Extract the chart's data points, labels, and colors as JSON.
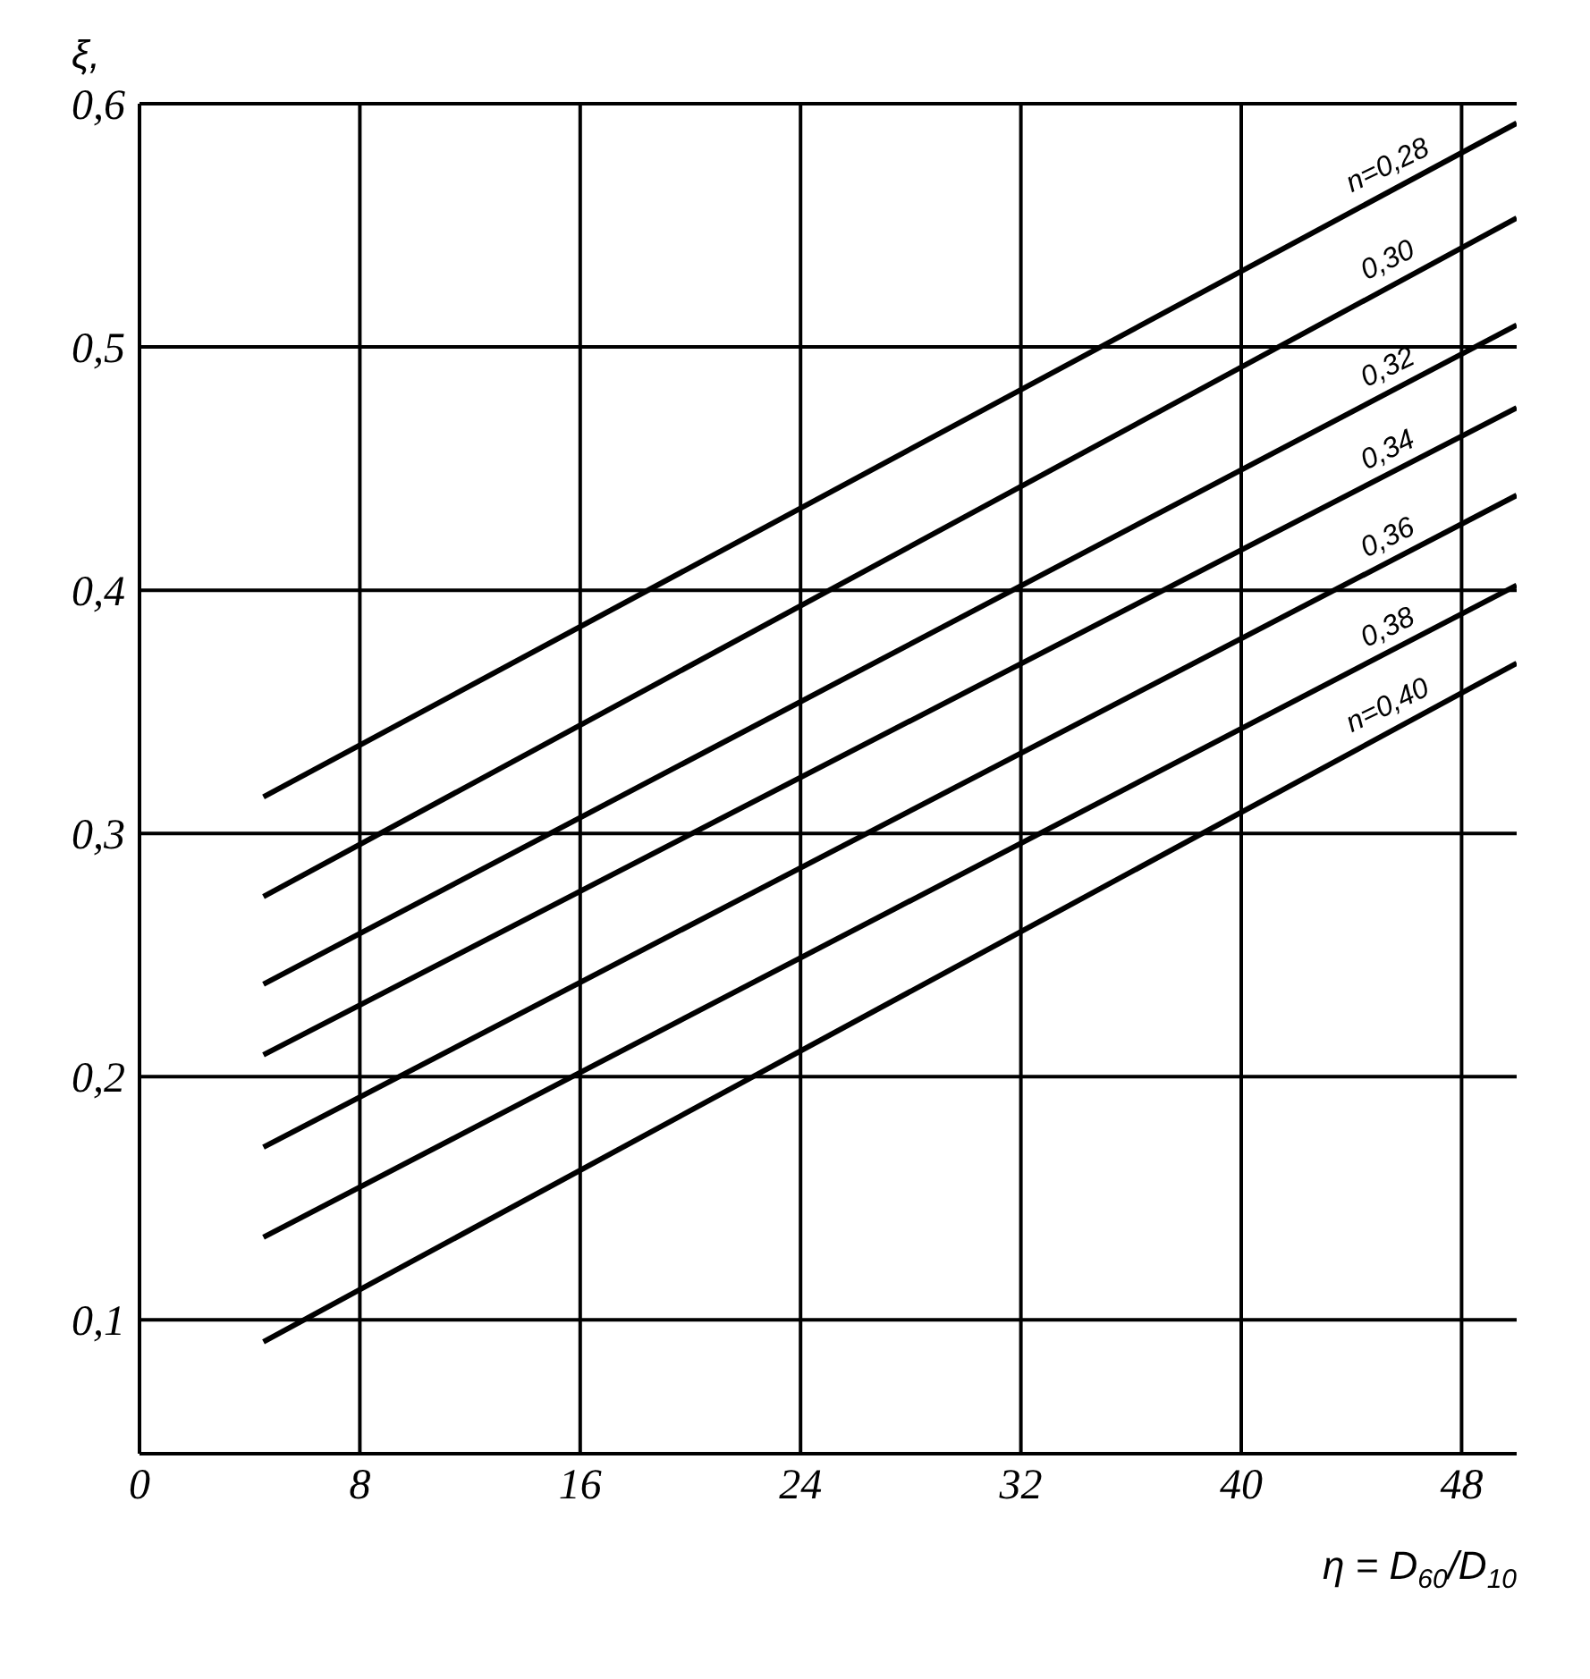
{
  "chart_data": {
    "type": "line",
    "xlabel": "η = D$_{60}$/D$_{10}$",
    "ylabel": "ξ,",
    "x": [
      4.5,
      50
    ],
    "series": [
      {
        "name": "n=0,28",
        "color": "#000000",
        "values": [
          0.315,
          0.592
        ]
      },
      {
        "name": "0,30",
        "color": "#000000",
        "values": [
          0.274,
          0.553
        ]
      },
      {
        "name": "0,32",
        "color": "#000000",
        "values": [
          0.238,
          0.509
        ]
      },
      {
        "name": "0,34",
        "color": "#000000",
        "values": [
          0.209,
          0.475
        ]
      },
      {
        "name": "0,36",
        "color": "#000000",
        "values": [
          0.171,
          0.439
        ]
      },
      {
        "name": "0,38",
        "color": "#000000",
        "values": [
          0.134,
          0.402
        ]
      },
      {
        "name": "n=0,40",
        "color": "#000000",
        "values": [
          0.091,
          0.37
        ]
      }
    ],
    "xlim": [
      0,
      50
    ],
    "xticks": [
      0,
      8,
      16,
      24,
      32,
      40,
      48
    ],
    "ylim": [
      0.045,
      0.6
    ],
    "yticks": [
      {
        "value": 0.1,
        "label": "0,1"
      },
      {
        "value": 0.2,
        "label": "0,2"
      },
      {
        "value": 0.3,
        "label": "0,3"
      },
      {
        "value": 0.4,
        "label": "0,4"
      },
      {
        "value": 0.5,
        "label": "0,5"
      },
      {
        "value": 0.6,
        "label": "0,6"
      }
    ],
    "grid": true,
    "marker": "none",
    "line_style": "solid"
  }
}
